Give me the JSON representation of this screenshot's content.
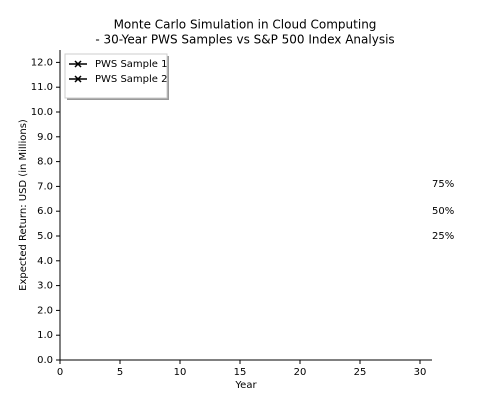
{
  "chart_data": {
    "type": "line",
    "title": "Monte Carlo Simulation in Cloud Computing",
    "subtitle": "- 30-Year PWS Samples vs S&P 500 Index Analysis",
    "x_label": "Year",
    "y_label": "Expected Return: USD (in Millions)",
    "series": [
      {
        "name": "PWS Sample 1",
        "color": "#000000",
        "marker": "x",
        "values": []
      },
      {
        "name": "PWS Sample 2",
        "color": "#000000",
        "marker": "x",
        "values": []
      }
    ],
    "xlim": [
      0,
      31
    ],
    "xticks": [
      0,
      5,
      10,
      15,
      20,
      25,
      30
    ],
    "ylim": [
      0,
      12.5
    ],
    "yticks": [
      {
        "value": 0,
        "label": "0.0"
      },
      {
        "value": 1,
        "label": "1.0"
      },
      {
        "value": 2,
        "label": "2.0"
      },
      {
        "value": 3,
        "label": "3.0"
      },
      {
        "value": 4,
        "label": "4.0"
      },
      {
        "value": 5,
        "label": "5.0"
      },
      {
        "value": 6,
        "label": "6.0"
      },
      {
        "value": 7,
        "label": "7.0"
      },
      {
        "value": 8,
        "label": "8.0"
      },
      {
        "value": 9,
        "label": "9.0"
      },
      {
        "value": 10,
        "label": "10.0"
      },
      {
        "value": 11,
        "label": "11.0"
      },
      {
        "value": 12,
        "label": "12.0"
      }
    ],
    "annotations": [
      {
        "text": "75%",
        "x": 31,
        "y": 7.1
      },
      {
        "text": "50%",
        "x": 31,
        "y": 6.0
      },
      {
        "text": "25%",
        "x": 31,
        "y": 5.0
      }
    ],
    "legend": "upper left",
    "grid": false
  }
}
